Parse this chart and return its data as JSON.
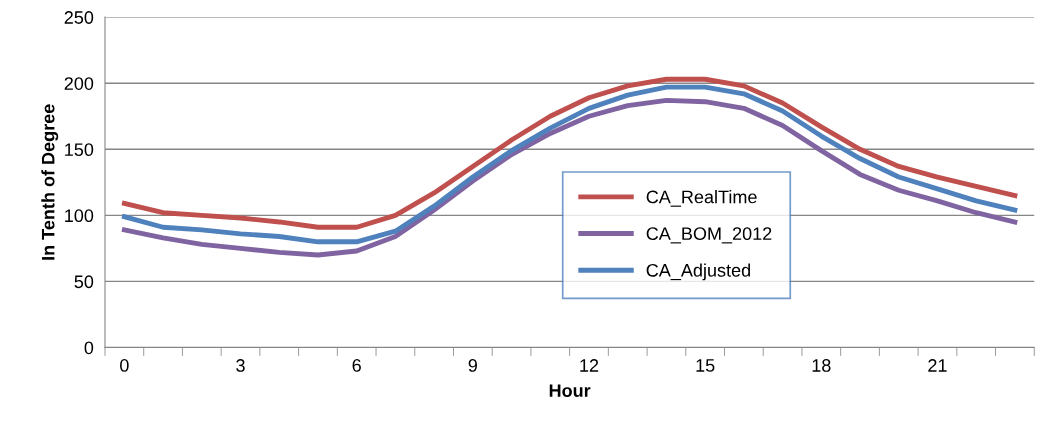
{
  "chart_data": {
    "type": "line",
    "xlabel": "Hour",
    "ylabel": "In Tenth of Degree",
    "categories": [
      "0",
      null,
      null,
      "3",
      null,
      null,
      "6",
      null,
      null,
      "9",
      null,
      null,
      "12",
      null,
      null,
      "15",
      null,
      null,
      "18",
      null,
      null,
      "21",
      null,
      null
    ],
    "series": [
      {
        "name": "CA_RealTime",
        "color": "#c0504d",
        "values": [
          109,
          102,
          100,
          98,
          95,
          91,
          91,
          100,
          117,
          137,
          157,
          175,
          189,
          198,
          203,
          203,
          198,
          185,
          167,
          150,
          137,
          129,
          122,
          115
        ]
      },
      {
        "name": "CA_BOM_2012",
        "color": "#8064a2",
        "values": [
          89,
          83,
          78,
          75,
          72,
          70,
          73,
          84,
          104,
          126,
          146,
          162,
          175,
          183,
          187,
          186,
          181,
          168,
          149,
          131,
          119,
          111,
          102,
          95
        ]
      },
      {
        "name": "CA_Adjusted",
        "color": "#4f81bd",
        "values": [
          99,
          91,
          89,
          86,
          84,
          80,
          80,
          88,
          107,
          129,
          149,
          166,
          181,
          191,
          197,
          197,
          192,
          179,
          160,
          143,
          129,
          120,
          111,
          104
        ]
      }
    ],
    "ylim": [
      0,
      250
    ],
    "yticks": [
      0,
      50,
      100,
      150,
      200,
      250
    ],
    "grid": "y",
    "legend": "bottom center",
    "marker": "none",
    "line_style": "solid"
  }
}
